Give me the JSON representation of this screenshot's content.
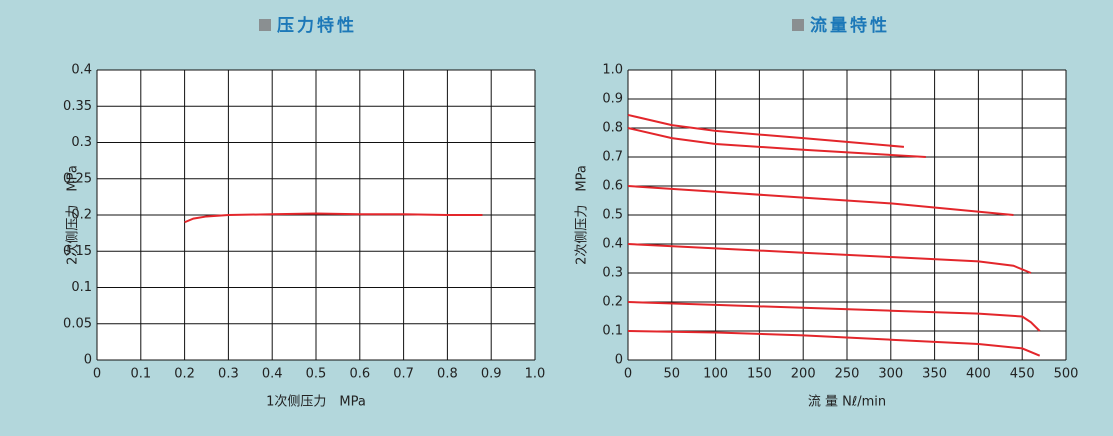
{
  "chart_data": [
    {
      "type": "line",
      "title": "压力特性",
      "x_label": "1次侧压力　MPa",
      "y_label": "2次侧压力　MPa",
      "xlim": [
        0,
        1
      ],
      "xticks": [
        0,
        0.1,
        0.2,
        0.3,
        0.4,
        0.5,
        0.6,
        0.7,
        0.8,
        0.9,
        {
          "value": 1,
          "label": "1.0"
        }
      ],
      "ylim": [
        0,
        0.4
      ],
      "yticks": [
        0,
        0.05,
        0.1,
        0.15,
        0.2,
        0.25,
        0.3,
        0.35,
        0.4
      ],
      "grid": true,
      "series": [
        {
          "color": "#e3262b",
          "x": [
            0.2,
            0.22,
            0.25,
            0.3,
            0.4,
            0.5,
            0.6,
            0.7,
            0.8,
            0.88
          ],
          "values": [
            0.19,
            0.195,
            0.198,
            0.2,
            0.201,
            0.202,
            0.201,
            0.201,
            0.2,
            0.2
          ]
        }
      ]
    },
    {
      "type": "line",
      "title": "流量特性",
      "x_label": "流 量 Nℓ/min",
      "y_label": "2次侧压力　MPa",
      "xlim": [
        0,
        500
      ],
      "xticks": [
        0,
        50,
        100,
        150,
        200,
        250,
        300,
        350,
        400,
        450,
        500
      ],
      "ylim": [
        0,
        1
      ],
      "yticks": [
        0,
        0.1,
        0.2,
        0.3,
        0.4,
        0.5,
        0.6,
        0.7,
        0.8,
        0.9,
        {
          "value": 1,
          "label": "1.0"
        }
      ],
      "grid": true,
      "series": [
        {
          "color": "#e3262b",
          "x": [
            0,
            50,
            100,
            200,
            315
          ],
          "values": [
            0.845,
            0.81,
            0.79,
            0.765,
            0.735
          ]
        },
        {
          "color": "#e3262b",
          "x": [
            0,
            50,
            100,
            200,
            340
          ],
          "values": [
            0.8,
            0.765,
            0.745,
            0.725,
            0.7
          ]
        },
        {
          "color": "#e3262b",
          "x": [
            0,
            100,
            200,
            300,
            440
          ],
          "values": [
            0.6,
            0.58,
            0.56,
            0.54,
            0.5
          ]
        },
        {
          "color": "#e3262b",
          "x": [
            0,
            100,
            200,
            300,
            400,
            440,
            460
          ],
          "values": [
            0.4,
            0.385,
            0.37,
            0.355,
            0.34,
            0.325,
            0.3
          ]
        },
        {
          "color": "#e3262b",
          "x": [
            0,
            100,
            200,
            300,
            400,
            450,
            460,
            470
          ],
          "values": [
            0.2,
            0.19,
            0.18,
            0.17,
            0.16,
            0.15,
            0.13,
            0.1
          ]
        },
        {
          "color": "#e3262b",
          "x": [
            0,
            100,
            200,
            300,
            400,
            450,
            470
          ],
          "values": [
            0.1,
            0.095,
            0.085,
            0.07,
            0.055,
            0.04,
            0.015
          ]
        }
      ]
    }
  ]
}
